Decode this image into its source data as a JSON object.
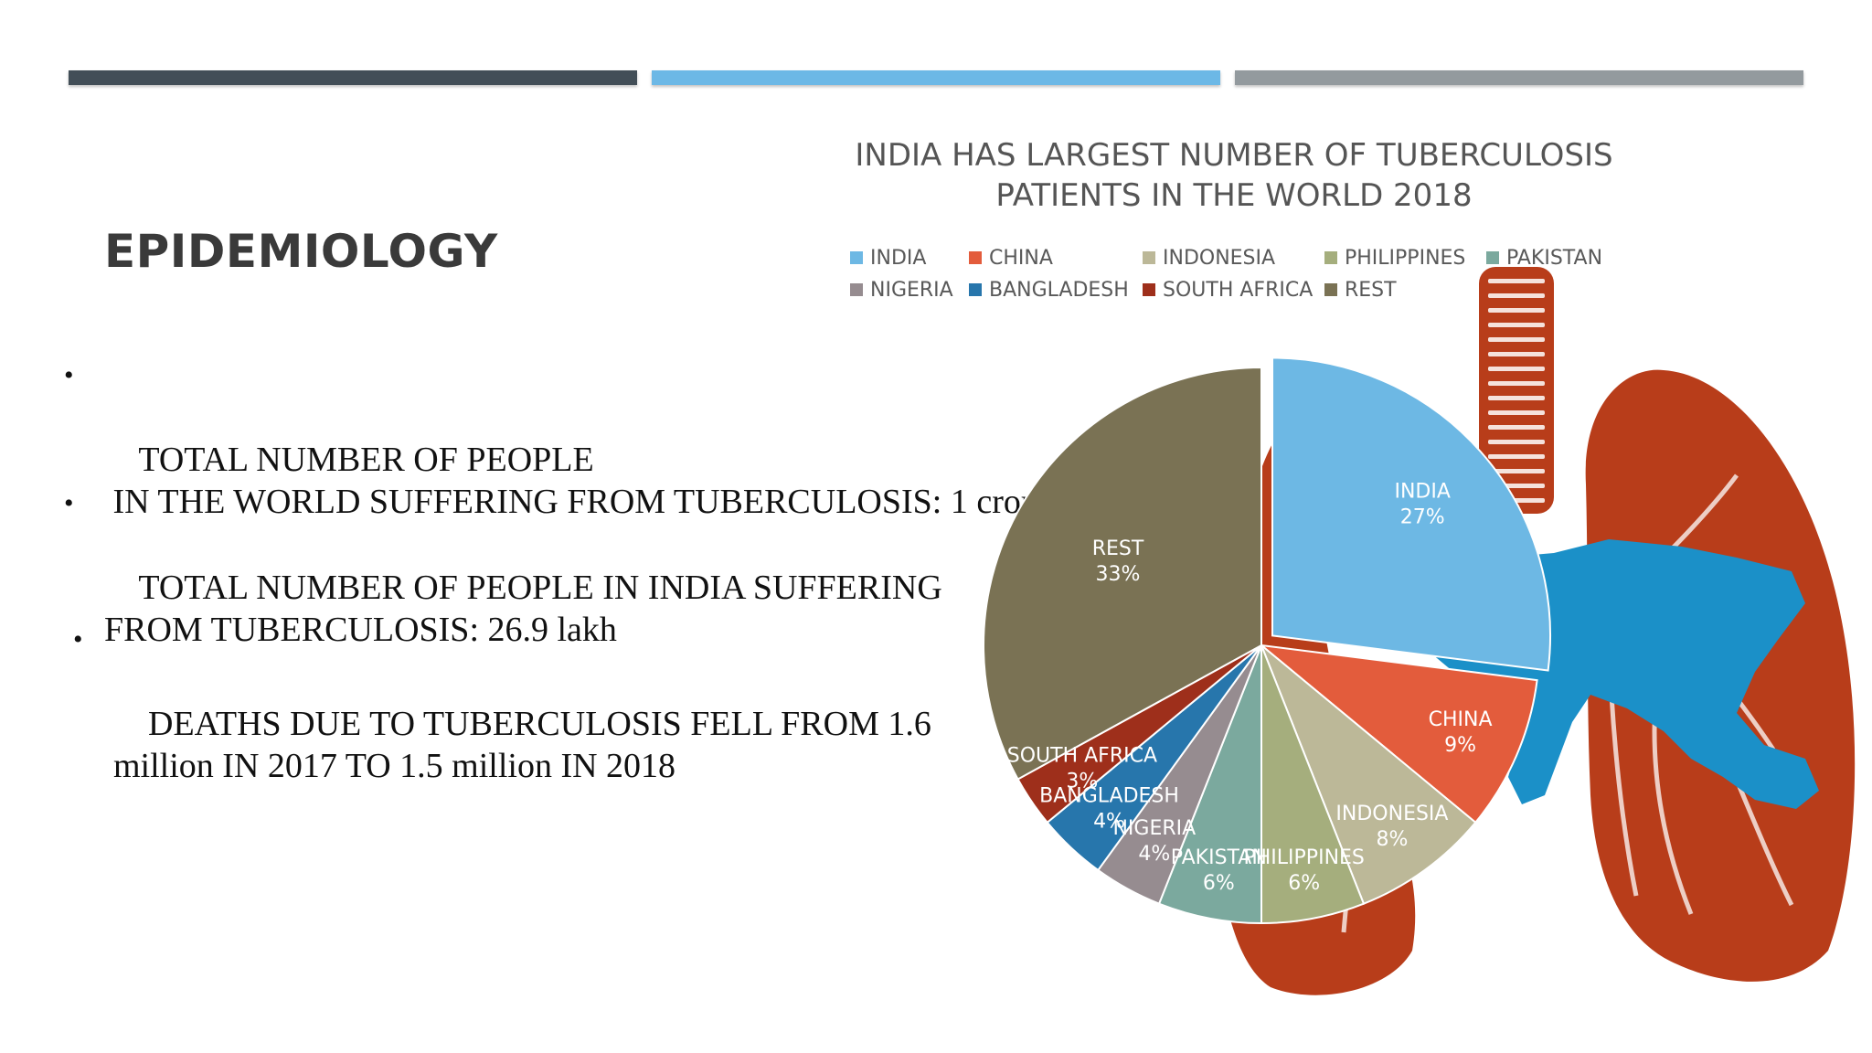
{
  "slide": {
    "title": "EPIDEMIOLOGY",
    "bullets": [
      {
        "text": "TOTAL NUMBER OF PEOPLE\n IN THE WORLD SUFFERING FROM TUBERCULOSIS: 1 crore"
      },
      {
        "text": "TOTAL NUMBER OF PEOPLE IN INDIA SUFFERING\nFROM TUBERCULOSIS: 26.9 lakh"
      },
      {
        "text": "DEATHS DUE TO TUBERCULOSIS FELL FROM 1.6\nmillion IN 2017 TO 1.5 million IN 2018"
      }
    ],
    "bullet_glyph": "•"
  },
  "chart_data": {
    "type": "pie",
    "title": "INDIA HAS LARGEST NUMBER OF TUBERCULOSIS PATIENTS IN THE WORLD 2018",
    "title_lines": [
      "INDIA HAS LARGEST NUMBER OF TUBERCULOSIS",
      "PATIENTS IN THE WORLD 2018"
    ],
    "legend_position": "top",
    "exploded_slice": "INDIA",
    "start_angle_deg": 0,
    "direction": "clockwise",
    "slices": [
      {
        "label": "INDIA",
        "value": 27,
        "value_label": "27%",
        "color": "#6db8e4"
      },
      {
        "label": "CHINA",
        "value": 9,
        "value_label": "9%",
        "color": "#e35c3c"
      },
      {
        "label": "INDONESIA",
        "value": 8,
        "value_label": "8%",
        "color": "#bcb898"
      },
      {
        "label": "PHILIPPINES",
        "value": 6,
        "value_label": "6%",
        "color": "#a5ae7d"
      },
      {
        "label": "PAKISTAN",
        "value": 6,
        "value_label": "6%",
        "color": "#7ba99e"
      },
      {
        "label": "NIGERIA",
        "value": 4,
        "value_label": "4%",
        "color": "#968c90"
      },
      {
        "label": "BANGLADESH",
        "value": 4,
        "value_label": "4%",
        "color": "#2776ac"
      },
      {
        "label": "SOUTH AFRICA",
        "value": 3,
        "value_label": "3%",
        "color": "#9e2f1b"
      },
      {
        "label": "REST",
        "value": 33,
        "value_label": "33%",
        "color": "#7a7254"
      }
    ]
  },
  "decoration": {
    "lungs_color": "#b83d1a",
    "map_color": "#1b90c8",
    "top_bar_colors": [
      "#424e57",
      "#6cb8e6",
      "#939a9e"
    ]
  }
}
